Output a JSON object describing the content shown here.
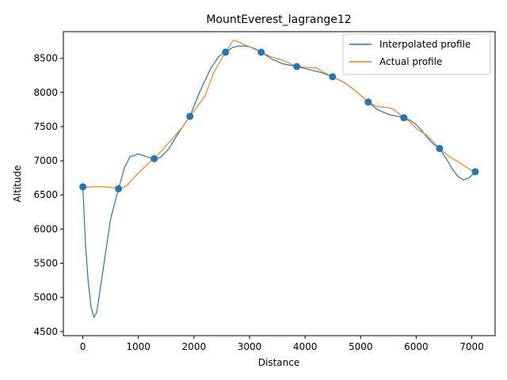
{
  "chart_data": {
    "type": "line",
    "title": "MountEverest_lagrange12",
    "xlabel": "Distance",
    "ylabel": "Altitude",
    "xlim": [
      -350,
      7420
    ],
    "ylim": [
      4440,
      8890
    ],
    "xticks": [
      0,
      1000,
      2000,
      3000,
      4000,
      5000,
      6000,
      7000
    ],
    "yticks": [
      4500,
      5000,
      5500,
      6000,
      6500,
      7000,
      7500,
      8000,
      8500
    ],
    "legend_position": "upper right",
    "colors": {
      "interpolated": "#1f77b4",
      "actual": "#ff7f0e",
      "points": "#1f77b4"
    },
    "sample_points": {
      "x": [
        0,
        642,
        1284,
        1926,
        2568,
        3210,
        3852,
        4494,
        5136,
        5778,
        6420,
        7062
      ],
      "y": [
        6620,
        6590,
        7030,
        7650,
        8590,
        8590,
        8380,
        8230,
        7860,
        7630,
        7180,
        6840
      ]
    },
    "series": [
      {
        "name": "Interpolated profile",
        "x": [
          0,
          50,
          100,
          150,
          200,
          250,
          300,
          400,
          500,
          642,
          750,
          850,
          1000,
          1150,
          1284,
          1400,
          1550,
          1700,
          1926,
          2100,
          2300,
          2450,
          2568,
          2700,
          2800,
          2900,
          3000,
          3100,
          3210,
          3400,
          3600,
          3852,
          4100,
          4300,
          4494,
          4700,
          4900,
          5136,
          5300,
          5500,
          5778,
          5900,
          6000,
          6100,
          6200,
          6300,
          6420,
          6550,
          6650,
          6750,
          6850,
          6950,
          7000,
          7062
        ],
        "y": [
          6620,
          5750,
          5200,
          4850,
          4710,
          4780,
          5050,
          5600,
          6150,
          6590,
          6900,
          7060,
          7100,
          7060,
          7030,
          7050,
          7180,
          7380,
          7650,
          8000,
          8350,
          8530,
          8590,
          8660,
          8680,
          8680,
          8670,
          8640,
          8590,
          8490,
          8420,
          8380,
          8330,
          8290,
          8230,
          8150,
          8030,
          7860,
          7750,
          7680,
          7630,
          7590,
          7530,
          7440,
          7340,
          7250,
          7180,
          7020,
          6880,
          6770,
          6720,
          6750,
          6790,
          6840
        ]
      },
      {
        "name": "Actual profile",
        "x": [
          0,
          200,
          400,
          600,
          700,
          800,
          900,
          1000,
          1100,
          1200,
          1284,
          1400,
          1600,
          1800,
          1926,
          2050,
          2200,
          2350,
          2500,
          2600,
          2700,
          2750,
          2850,
          3000,
          3100,
          3210,
          3400,
          3600,
          3852,
          4000,
          4100,
          4200,
          4300,
          4494,
          4700,
          4900,
          5136,
          5300,
          5500,
          5600,
          5778,
          5900,
          6000,
          6200,
          6420,
          6600,
          6800,
          7000,
          7062
        ],
        "y": [
          6610,
          6620,
          6620,
          6600,
          6600,
          6640,
          6740,
          6820,
          6900,
          6980,
          7030,
          7130,
          7310,
          7500,
          7650,
          7780,
          7950,
          8280,
          8500,
          8620,
          8760,
          8760,
          8720,
          8670,
          8630,
          8590,
          8520,
          8470,
          8380,
          8370,
          8360,
          8360,
          8310,
          8230,
          8150,
          8030,
          7860,
          7790,
          7780,
          7750,
          7630,
          7560,
          7470,
          7370,
          7180,
          7060,
          6960,
          6860,
          6840
        ]
      }
    ]
  }
}
